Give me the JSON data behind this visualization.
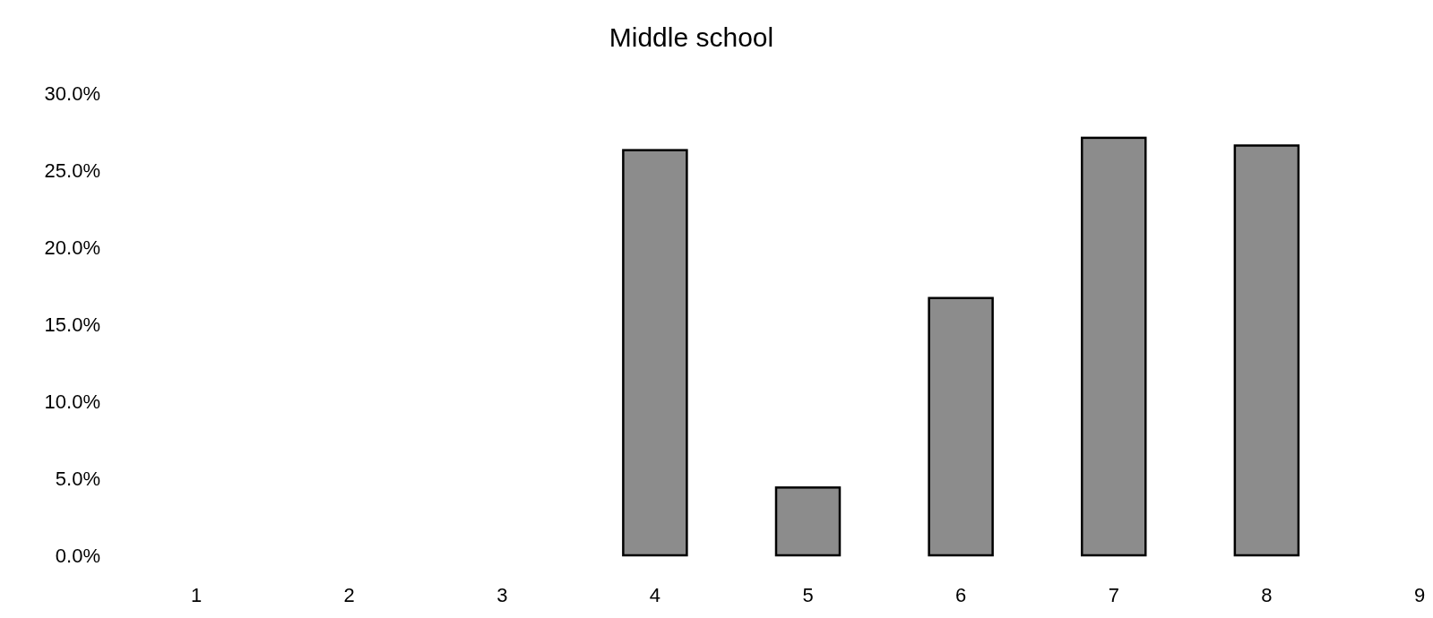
{
  "chart_data": {
    "type": "bar",
    "title": "Middle school",
    "categories": [
      "1",
      "2",
      "3",
      "4",
      "5",
      "6",
      "7",
      "8",
      "9"
    ],
    "values": [
      0,
      0,
      0,
      26.3,
      4.4,
      16.7,
      27.1,
      26.6,
      0
    ],
    "color": "#8c8c8c",
    "ylim": [
      0,
      30
    ],
    "yticks": [
      {
        "value": 0,
        "label": "0.0%"
      },
      {
        "value": 5,
        "label": "5.0%"
      },
      {
        "value": 10,
        "label": "10.0%"
      },
      {
        "value": 15,
        "label": "15.0%"
      },
      {
        "value": 20,
        "label": "20.0%"
      },
      {
        "value": 25,
        "label": "25.0%"
      },
      {
        "value": 30,
        "label": "30.0%"
      }
    ],
    "grid": false
  }
}
